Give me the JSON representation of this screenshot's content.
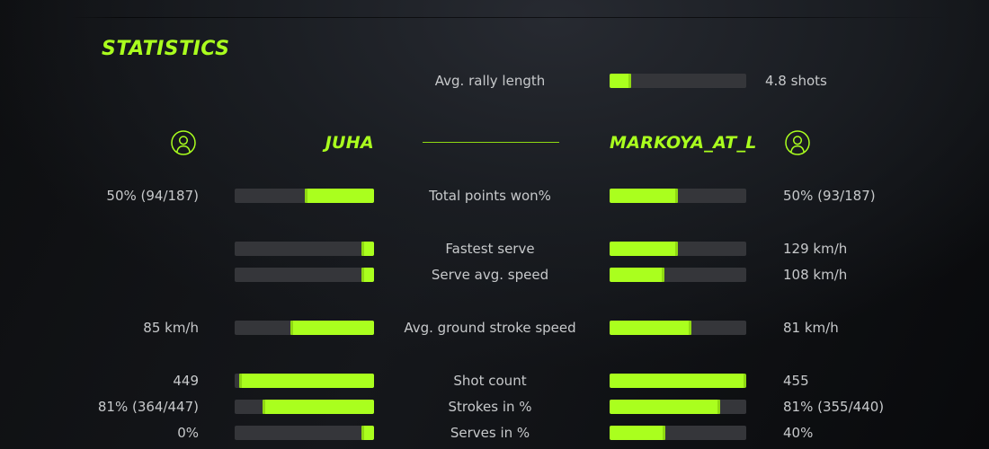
{
  "title": "STATISTICS",
  "colors": {
    "accent_green": "#aaff1e",
    "accent_green_dark": "#8fd912",
    "bar_track": "#35363a",
    "text_light": "#c7c9cb",
    "background_dark": "#0b0c0e"
  },
  "rally": {
    "label": "Avg. rally length",
    "value": "4.8 shots",
    "fill_pct": 16
  },
  "players": {
    "left": {
      "name": "JUHA",
      "icon": "user-icon"
    },
    "right": {
      "name": "MARKOYA_AT_L",
      "icon": "user-icon"
    }
  },
  "stats": [
    {
      "label": "Total points won%",
      "left": {
        "value": "50% (94/187)",
        "pct": 50
      },
      "right": {
        "value": "50% (93/187)",
        "pct": 50
      }
    },
    {
      "label": "Fastest serve",
      "left": {
        "value": "",
        "pct": 9
      },
      "right": {
        "value": "129 km/h",
        "pct": 50
      }
    },
    {
      "label": "Serve avg. speed",
      "left": {
        "value": "",
        "pct": 9
      },
      "right": {
        "value": "108 km/h",
        "pct": 40
      }
    },
    {
      "label": "Avg. ground stroke speed",
      "left": {
        "value": "85 km/h",
        "pct": 60
      },
      "right": {
        "value": "81 km/h",
        "pct": 60
      }
    },
    {
      "label": "Shot count",
      "left": {
        "value": "449",
        "pct": 97
      },
      "right": {
        "value": "455",
        "pct": 100
      }
    },
    {
      "label": "Strokes in %",
      "left": {
        "value": "81% (364/447)",
        "pct": 80
      },
      "right": {
        "value": "81% (355/440)",
        "pct": 81
      }
    },
    {
      "label": "Serves in %",
      "left": {
        "value": "0%",
        "pct": 9
      },
      "right": {
        "value": "40%",
        "pct": 41
      }
    }
  ]
}
